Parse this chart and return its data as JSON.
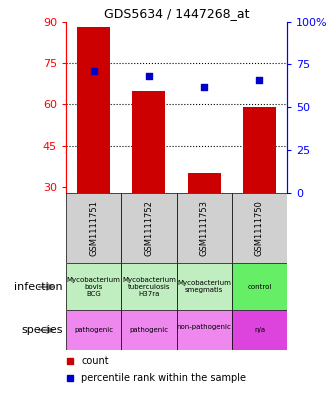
{
  "title": "GDS5634 / 1447268_at",
  "samples": [
    "GSM1111751",
    "GSM1111752",
    "GSM1111753",
    "GSM1111750"
  ],
  "counts": [
    88,
    65,
    35,
    59
  ],
  "percentiles": [
    71,
    68,
    62,
    66
  ],
  "ylim_left": [
    28,
    90
  ],
  "ylim_right": [
    0,
    100
  ],
  "yticks_left": [
    30,
    45,
    60,
    75,
    90
  ],
  "yticks_right": [
    0,
    25,
    50,
    75,
    100
  ],
  "yticks_right_labels": [
    "0",
    "25",
    "50",
    "75",
    "100%"
  ],
  "hlines": [
    45,
    60,
    75
  ],
  "bar_color": "#cc0000",
  "dot_color": "#0000cc",
  "infection_labels": [
    "Mycobacterium bovis BCG",
    "Mycobacterium tuberculosis H37ra",
    "Mycobacterium smegmatis",
    "control"
  ],
  "infection_colors": [
    "#c0eec0",
    "#c0eec0",
    "#c0eec0",
    "#66ee66"
  ],
  "species_labels": [
    "pathogenic",
    "pathogenic",
    "non-pathogenic",
    "n/a"
  ],
  "species_colors": [
    "#ee88ee",
    "#ee88ee",
    "#ee88ee",
    "#dd44dd"
  ],
  "gsm_bg_color": "#d0d0d0",
  "row_label_infection": "infection",
  "row_label_species": "species",
  "legend_count": "count",
  "legend_percentile": "percentile rank within the sample",
  "fig_width": 3.3,
  "fig_height": 3.93,
  "dpi": 100
}
